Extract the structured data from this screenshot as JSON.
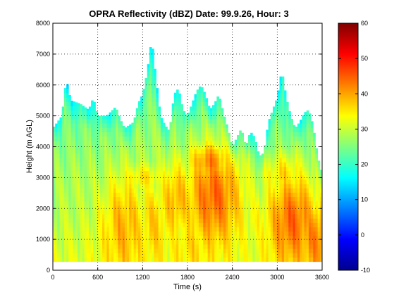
{
  "chart_data": {
    "type": "heatmap",
    "title": "OPRA Reflectivity (dBZ)  Date: 99.9.26, Hour: 3",
    "xlabel": "Time (s)",
    "ylabel": "Height (m AGL)",
    "xlim": [
      0,
      3600
    ],
    "ylim": [
      0,
      8000
    ],
    "x_ticks": [
      0,
      600,
      1200,
      1800,
      2400,
      3000,
      3600
    ],
    "y_ticks": [
      0,
      1000,
      2000,
      3000,
      4000,
      5000,
      6000,
      7000,
      8000
    ],
    "grid": true,
    "colorbar": {
      "min": -10,
      "max": 60,
      "ticks": [
        -10,
        0,
        10,
        20,
        30,
        40,
        50,
        60
      ],
      "colormap": "jet"
    },
    "data_bottom_height": 280,
    "time_step": 30,
    "echo_top": [
      [
        0,
        4600
      ],
      [
        120,
        5000
      ],
      [
        180,
        6200
      ],
      [
        240,
        5500
      ],
      [
        360,
        5400
      ],
      [
        480,
        5200
      ],
      [
        540,
        5600
      ],
      [
        600,
        5000
      ],
      [
        720,
        5000
      ],
      [
        840,
        5300
      ],
      [
        900,
        4900
      ],
      [
        960,
        4600
      ],
      [
        1080,
        4800
      ],
      [
        1140,
        5400
      ],
      [
        1200,
        5700
      ],
      [
        1260,
        6400
      ],
      [
        1320,
        7500
      ],
      [
        1380,
        6200
      ],
      [
        1440,
        5000
      ],
      [
        1500,
        4700
      ],
      [
        1560,
        4500
      ],
      [
        1620,
        5700
      ],
      [
        1680,
        5900
      ],
      [
        1740,
        5200
      ],
      [
        1800,
        5000
      ],
      [
        1860,
        5400
      ],
      [
        1920,
        5800
      ],
      [
        1980,
        6000
      ],
      [
        2040,
        5700
      ],
      [
        2100,
        5200
      ],
      [
        2160,
        5400
      ],
      [
        2220,
        5700
      ],
      [
        2280,
        5100
      ],
      [
        2340,
        4600
      ],
      [
        2400,
        4000
      ],
      [
        2460,
        4300
      ],
      [
        2520,
        4600
      ],
      [
        2580,
        4000
      ],
      [
        2640,
        4500
      ],
      [
        2700,
        4300
      ],
      [
        2760,
        3700
      ],
      [
        2820,
        3800
      ],
      [
        2880,
        4800
      ],
      [
        2940,
        5200
      ],
      [
        3000,
        5600
      ],
      [
        3060,
        6500
      ],
      [
        3120,
        5600
      ],
      [
        3180,
        5000
      ],
      [
        3240,
        4600
      ],
      [
        3300,
        4800
      ],
      [
        3360,
        5100
      ],
      [
        3420,
        5200
      ],
      [
        3480,
        4700
      ],
      [
        3540,
        3700
      ],
      [
        3600,
        3100
      ]
    ],
    "reflectivity_regions": [
      {
        "t": 1400,
        "h": 600,
        "st": 700,
        "sh": 4000,
        "v": 30
      },
      {
        "t": 600,
        "h": 2200,
        "st": 600,
        "sh": 1400,
        "v": 29
      },
      {
        "t": 950,
        "h": 1400,
        "st": 300,
        "sh": 1800,
        "v": 39
      },
      {
        "t": 1200,
        "h": 3000,
        "st": 350,
        "sh": 500,
        "v": 35
      },
      {
        "t": 1350,
        "h": 1500,
        "st": 250,
        "sh": 1500,
        "v": 37
      },
      {
        "t": 1650,
        "h": 2300,
        "st": 250,
        "sh": 1300,
        "v": 39
      },
      {
        "t": 2150,
        "h": 2400,
        "st": 400,
        "sh": 1700,
        "v": 44
      },
      {
        "t": 2100,
        "h": 3500,
        "st": 300,
        "sh": 700,
        "v": 42
      },
      {
        "t": 1900,
        "h": 800,
        "st": 400,
        "sh": 1200,
        "v": 36
      },
      {
        "t": 3200,
        "h": 1600,
        "st": 350,
        "sh": 1600,
        "v": 44
      },
      {
        "t": 3100,
        "h": 3100,
        "st": 300,
        "sh": 700,
        "v": 36
      },
      {
        "t": 3500,
        "h": 1000,
        "st": 250,
        "sh": 1400,
        "v": 42
      },
      {
        "t": 2700,
        "h": 1500,
        "st": 300,
        "sh": 1200,
        "v": 33
      }
    ]
  }
}
